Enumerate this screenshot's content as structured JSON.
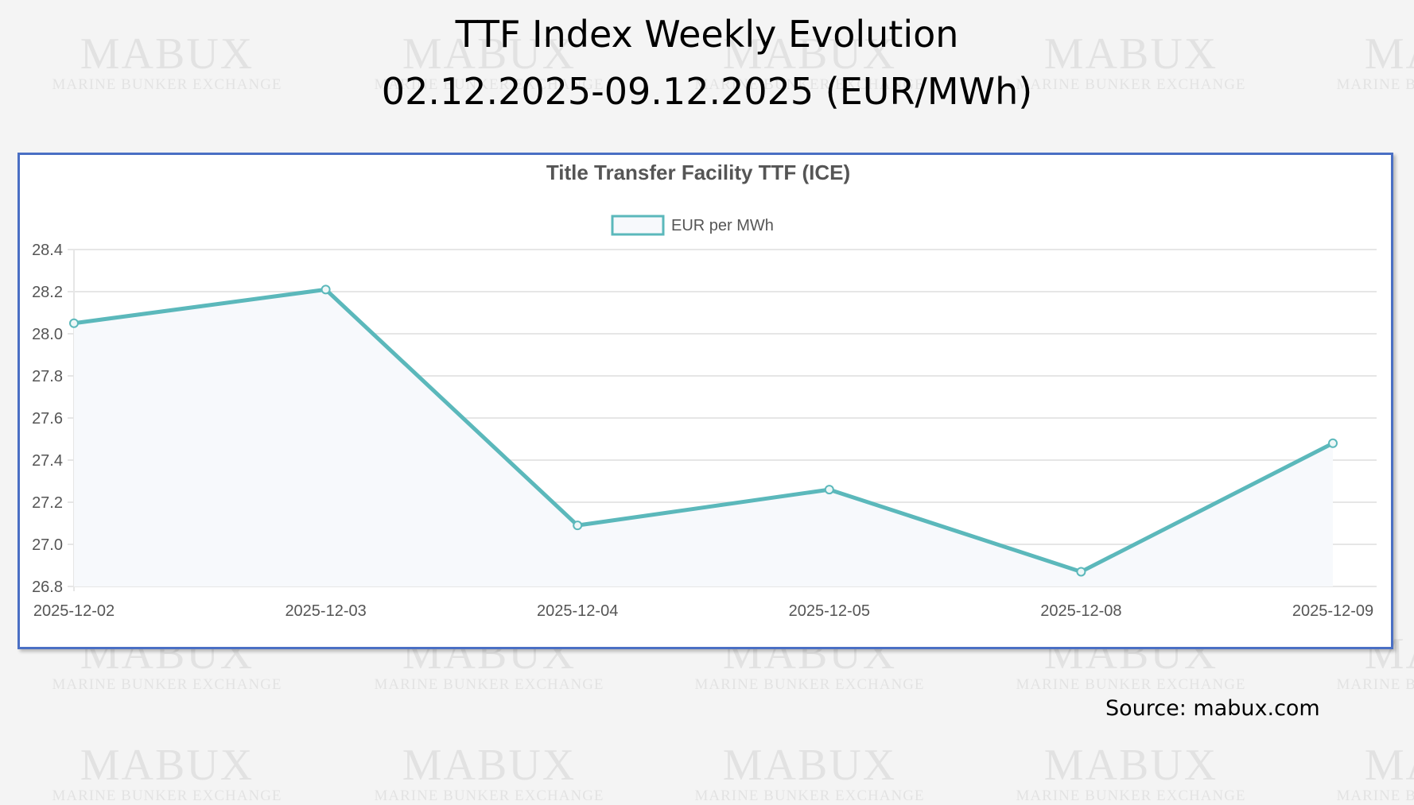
{
  "header": {
    "title_line1": "TTF Index Weekly Evolution",
    "title_line2": "02.12.2025-09.12.2025 (EUR/MWh)"
  },
  "watermark": {
    "brand": "MABUX",
    "tagline": "MARINE BUNKER EXCHANGE"
  },
  "source": "Source: mabux.com",
  "colors": {
    "line": "#5bb8bb",
    "fill": "#f7f9fc",
    "frame": "#4a6fc4",
    "grid": "#e6e6e6"
  },
  "chart_data": {
    "type": "line",
    "title": "Title Transfer Facility TTF (ICE)",
    "xlabel": "",
    "ylabel": "",
    "categories": [
      "2025-12-02",
      "2025-12-03",
      "2025-12-04",
      "2025-12-05",
      "2025-12-08",
      "2025-12-09"
    ],
    "series": [
      {
        "name": "EUR per MWh",
        "values": [
          28.05,
          28.21,
          27.09,
          27.26,
          26.87,
          27.48
        ]
      }
    ],
    "ylim": [
      26.8,
      28.4
    ],
    "yticks": [
      "28.4",
      "28.2",
      "28.0",
      "27.8",
      "27.6",
      "27.4",
      "27.2",
      "27.0",
      "26.8"
    ],
    "grid": true,
    "legend": "top-center"
  }
}
